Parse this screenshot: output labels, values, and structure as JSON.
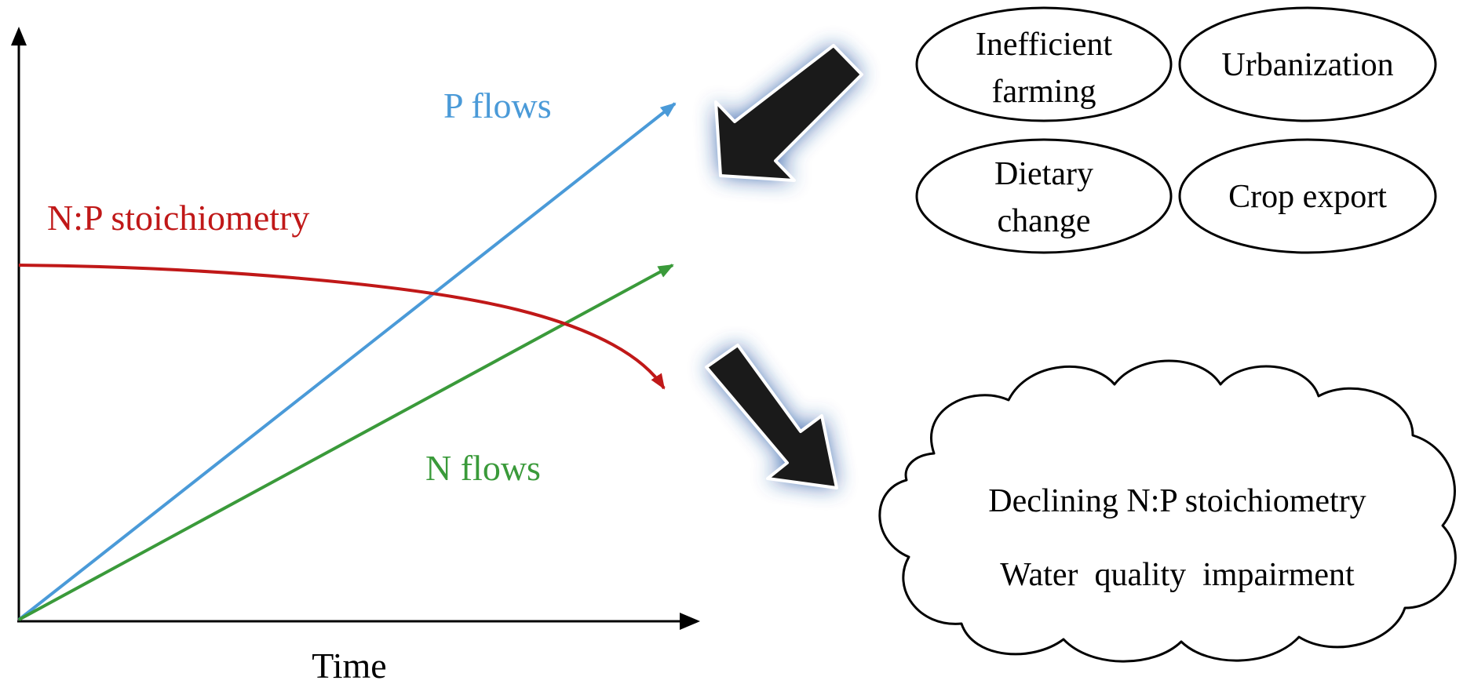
{
  "axes": {
    "xlabel": "Time"
  },
  "curves": {
    "p_flows": {
      "label": "P flows",
      "color": "#4a9ad8"
    },
    "n_flows": {
      "label": "N flows",
      "color": "#3a9a3a"
    },
    "np_stoichiometry": {
      "label": "N:P stoichiometry",
      "color": "#c01818"
    }
  },
  "drivers": {
    "inefficient_farming": {
      "line1": "Inefficient",
      "line2": "farming"
    },
    "urbanization": {
      "label": "Urbanization"
    },
    "dietary_change": {
      "line1": "Dietary",
      "line2": "change"
    },
    "crop_export": {
      "label": "Crop export"
    }
  },
  "consequences": {
    "declining": "Declining N:P stoichiometry",
    "water": "Water  quality  impairment"
  },
  "colors": {
    "arrow_fill": "#1a1a1a",
    "arrow_glow": "#1f4fa0"
  }
}
